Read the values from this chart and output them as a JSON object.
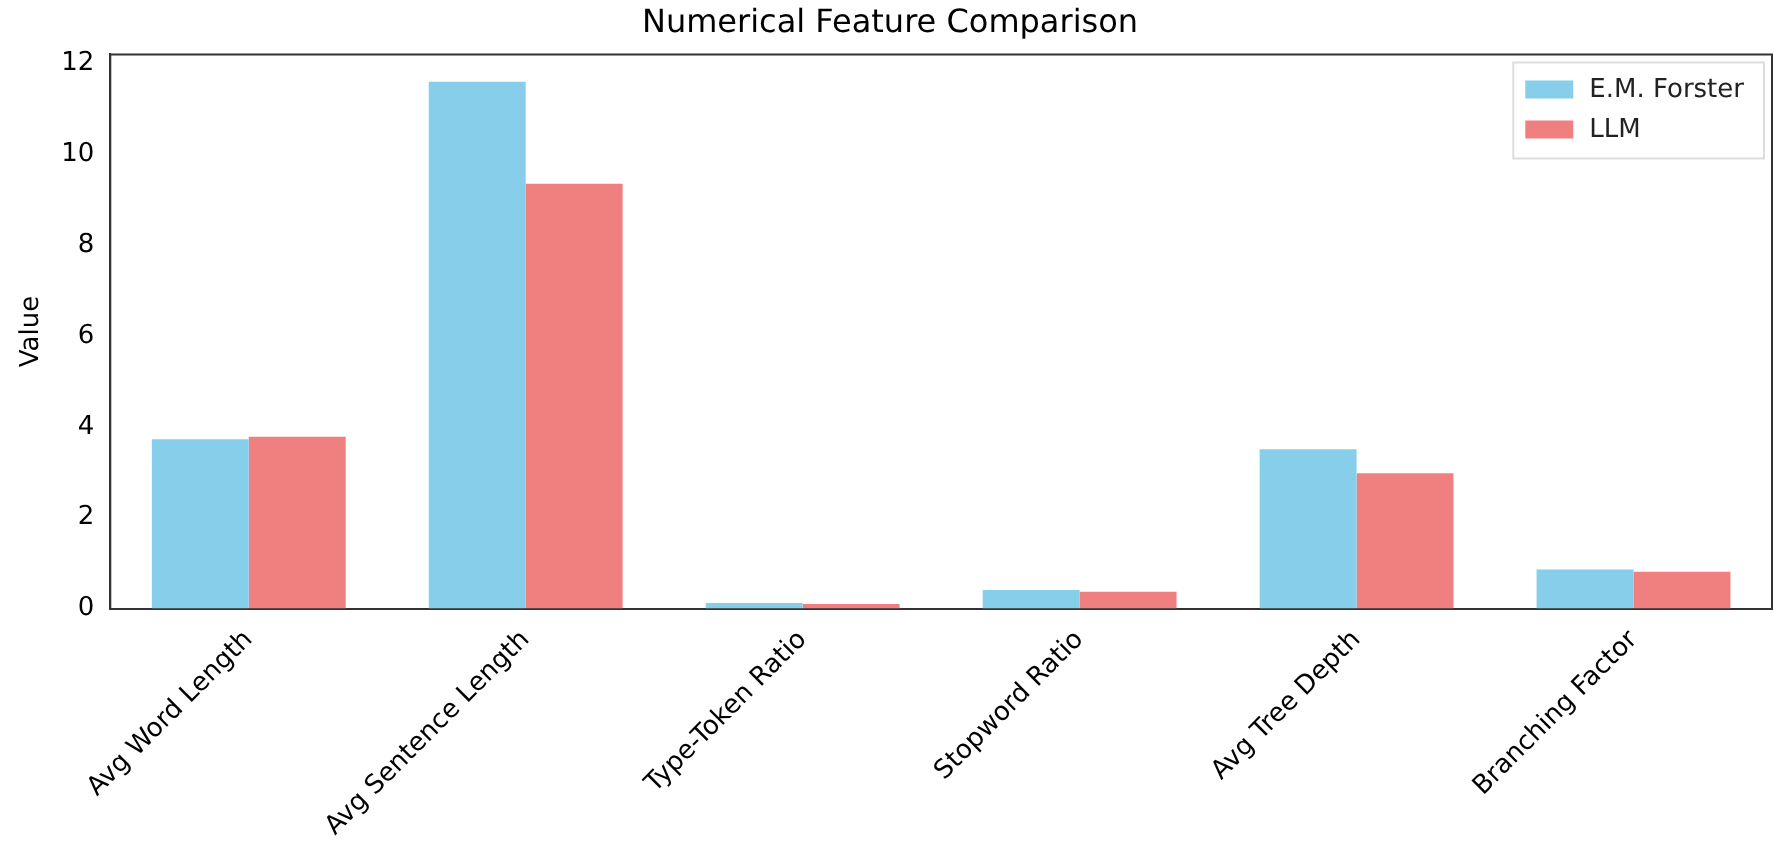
{
  "chart_data": {
    "type": "bar",
    "title": "Numerical Feature Comparison",
    "ylabel": "Value",
    "categories": [
      "Avg Word Length",
      "Avg Sentence Length",
      "Type-Token Ratio",
      "Stopword Ratio",
      "Avg Tree Depth",
      "Branching Factor"
    ],
    "series": [
      {
        "name": "E.M. Forster",
        "color": "#87ceeb",
        "values": [
          3.73,
          11.6,
          0.12,
          0.41,
          3.51,
          0.86
        ]
      },
      {
        "name": "LLM",
        "color": "#f08080",
        "values": [
          3.78,
          9.35,
          0.1,
          0.37,
          2.98,
          0.81
        ]
      }
    ],
    "ylim": [
      0,
      12.2
    ],
    "yticks": [
      0,
      2,
      4,
      6,
      8,
      10,
      12
    ],
    "grid": false,
    "legend": "top right"
  }
}
